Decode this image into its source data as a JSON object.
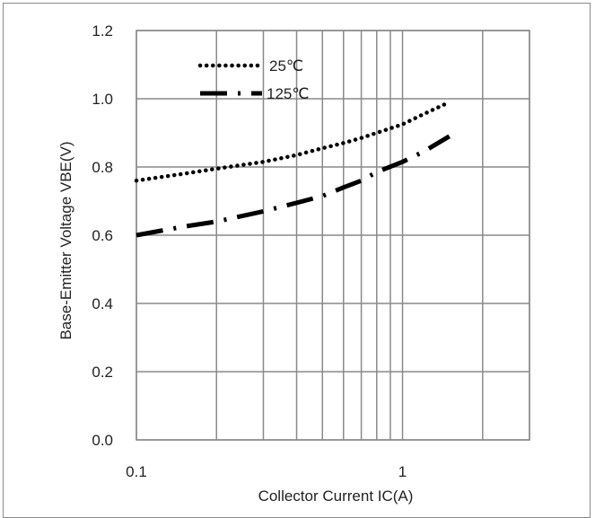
{
  "chart_data": {
    "type": "line",
    "title": "",
    "xlabel": "Collector Current IC(A)",
    "ylabel": "Base-Emitter Voltage VBE(V)",
    "xscale": "log",
    "xlim": [
      0.1,
      3
    ],
    "ylim": [
      0.0,
      1.2
    ],
    "x_ticks": [
      {
        "value": 0.1,
        "label": "0.1"
      },
      {
        "value": 1,
        "label": "1"
      }
    ],
    "y_ticks": [
      {
        "value": 0.0,
        "label": "0.0"
      },
      {
        "value": 0.2,
        "label": "0.2"
      },
      {
        "value": 0.4,
        "label": "0.4"
      },
      {
        "value": 0.6,
        "label": "0.6"
      },
      {
        "value": 0.8,
        "label": "0.8"
      },
      {
        "value": 1.0,
        "label": "1.0"
      },
      {
        "value": 1.2,
        "label": "1.2"
      }
    ],
    "grid": true,
    "legend_position": "top-left",
    "series": [
      {
        "name": "25℃",
        "style": "dotted",
        "color": "#000000",
        "x": [
          0.1,
          0.15,
          0.2,
          0.3,
          0.4,
          0.5,
          0.6,
          0.7,
          0.8,
          1.0,
          1.2,
          1.5
        ],
        "y": [
          0.76,
          0.78,
          0.795,
          0.815,
          0.835,
          0.855,
          0.87,
          0.885,
          0.9,
          0.925,
          0.955,
          0.99
        ]
      },
      {
        "name": "125℃",
        "style": "dash-dot",
        "color": "#000000",
        "x": [
          0.1,
          0.15,
          0.2,
          0.3,
          0.4,
          0.5,
          0.6,
          0.7,
          0.8,
          1.0,
          1.2,
          1.5
        ],
        "y": [
          0.6,
          0.625,
          0.64,
          0.67,
          0.695,
          0.715,
          0.74,
          0.76,
          0.785,
          0.815,
          0.845,
          0.89
        ]
      }
    ]
  }
}
